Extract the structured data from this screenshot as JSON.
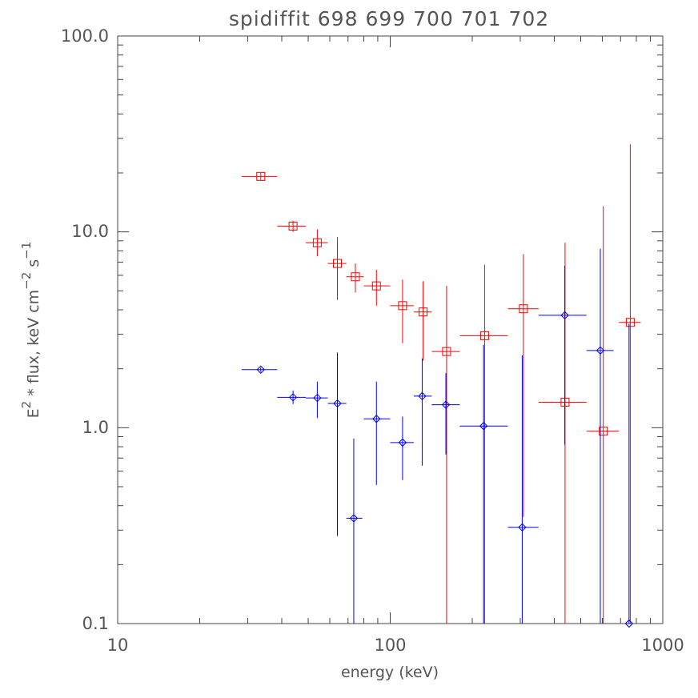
{
  "chart_data": {
    "type": "scatter",
    "title": "spidiffit   698  699  700  701  702",
    "xlabel": "energy (keV)",
    "ylabel": "E",
    "ylabel_sup1": "2",
    "ylabel_mid": " * flux, keV cm",
    "ylabel_sup2": "−2",
    "ylabel_s": " s",
    "ylabel_sup3": "−1",
    "x_scale": "log",
    "y_scale": "log",
    "xlim": [
      10,
      1000
    ],
    "ylim": [
      0.1,
      100
    ],
    "x_tick_labels": [
      "10",
      "100",
      "1000"
    ],
    "y_tick_labels": [
      "0.1",
      "1.0",
      "10.0",
      "100.0"
    ],
    "grid": false,
    "series": [
      {
        "marker": "square",
        "color": "#ff0000",
        "points": [
          {
            "x": 33.5,
            "xlo": 28.5,
            "xhi": 38.5,
            "y": 19.2,
            "ylo": 18.4,
            "yhi": 20.0
          },
          {
            "x": 44,
            "xlo": 38.5,
            "xhi": 49,
            "y": 10.7,
            "ylo": 10.0,
            "yhi": 11.4
          },
          {
            "x": 54,
            "xlo": 49,
            "xhi": 59,
            "y": 8.8,
            "ylo": 7.5,
            "yhi": 10.3
          },
          {
            "x": 64,
            "xlo": 59,
            "xhi": 69,
            "y": 6.9,
            "ylo": 4.5,
            "yhi": 9.4
          },
          {
            "x": 74.5,
            "xlo": 69,
            "xhi": 80,
            "y": 5.9,
            "ylo": 4.9,
            "yhi": 6.9
          },
          {
            "x": 89,
            "xlo": 80,
            "xhi": 100,
            "y": 5.3,
            "ylo": 4.2,
            "yhi": 6.4
          },
          {
            "x": 111,
            "xlo": 100,
            "xhi": 122,
            "y": 4.2,
            "ylo": 2.7,
            "yhi": 5.7
          },
          {
            "x": 132,
            "xlo": 122,
            "xhi": 142,
            "y": 3.9,
            "ylo": 2.2,
            "yhi": 5.6
          },
          {
            "x": 161,
            "xlo": 142,
            "xhi": 180,
            "y": 2.45,
            "ylo": 0.1,
            "yhi": 5.3
          },
          {
            "x": 222,
            "xlo": 180,
            "xhi": 270,
            "y": 2.95,
            "ylo": 0.1,
            "yhi": 6.8
          },
          {
            "x": 308,
            "xlo": 270,
            "xhi": 350,
            "y": 4.05,
            "ylo": 0.35,
            "yhi": 7.7
          },
          {
            "x": 438,
            "xlo": 350,
            "xhi": 525,
            "y": 1.35,
            "ylo": 0.1,
            "yhi": 8.8
          },
          {
            "x": 605,
            "xlo": 525,
            "xhi": 690,
            "y": 0.96,
            "ylo": 0.1,
            "yhi": 13.5
          },
          {
            "x": 760,
            "xlo": 690,
            "xhi": 830,
            "y": 3.45,
            "ylo": 0.1,
            "yhi": 28
          }
        ]
      },
      {
        "marker": "diamond",
        "color": "#0000ff",
        "points": [
          {
            "x": 33.5,
            "xlo": 28.5,
            "xhi": 38.5,
            "y": 1.98,
            "ylo": 1.93,
            "yhi": 2.03
          },
          {
            "x": 44,
            "xlo": 38.5,
            "xhi": 49,
            "y": 1.43,
            "ylo": 1.32,
            "yhi": 1.55
          },
          {
            "x": 54,
            "xlo": 49,
            "xhi": 59,
            "y": 1.42,
            "ylo": 1.12,
            "yhi": 1.72
          },
          {
            "x": 64,
            "xlo": 59,
            "xhi": 69,
            "y": 1.33,
            "ylo": 0.28,
            "yhi": 2.42
          },
          {
            "x": 73.5,
            "xlo": 69,
            "xhi": 79,
            "y": 0.345,
            "ylo": 0.1,
            "yhi": 0.88
          },
          {
            "x": 89,
            "xlo": 80,
            "xhi": 100,
            "y": 1.11,
            "ylo": 0.51,
            "yhi": 1.72
          },
          {
            "x": 111,
            "xlo": 100,
            "xhi": 122,
            "y": 0.84,
            "ylo": 0.54,
            "yhi": 1.14
          },
          {
            "x": 131,
            "xlo": 122,
            "xhi": 142,
            "y": 1.45,
            "ylo": 0.64,
            "yhi": 2.26
          },
          {
            "x": 160,
            "xlo": 142,
            "xhi": 180,
            "y": 1.31,
            "ylo": 0.73,
            "yhi": 1.9
          },
          {
            "x": 220,
            "xlo": 180,
            "xhi": 270,
            "y": 1.02,
            "ylo": 0.1,
            "yhi": 2.65
          },
          {
            "x": 305,
            "xlo": 270,
            "xhi": 350,
            "y": 0.31,
            "ylo": 0.1,
            "yhi": 2.34
          },
          {
            "x": 437,
            "xlo": 350,
            "xhi": 525,
            "y": 3.75,
            "ylo": 0.82,
            "yhi": 6.7
          },
          {
            "x": 590,
            "xlo": 525,
            "xhi": 660,
            "y": 2.48,
            "ylo": 0.1,
            "yhi": 8.2
          },
          {
            "x": 752,
            "xlo": 740,
            "xhi": 765,
            "y": 0.1,
            "ylo": 0.1,
            "yhi": 3.4
          }
        ]
      }
    ]
  }
}
